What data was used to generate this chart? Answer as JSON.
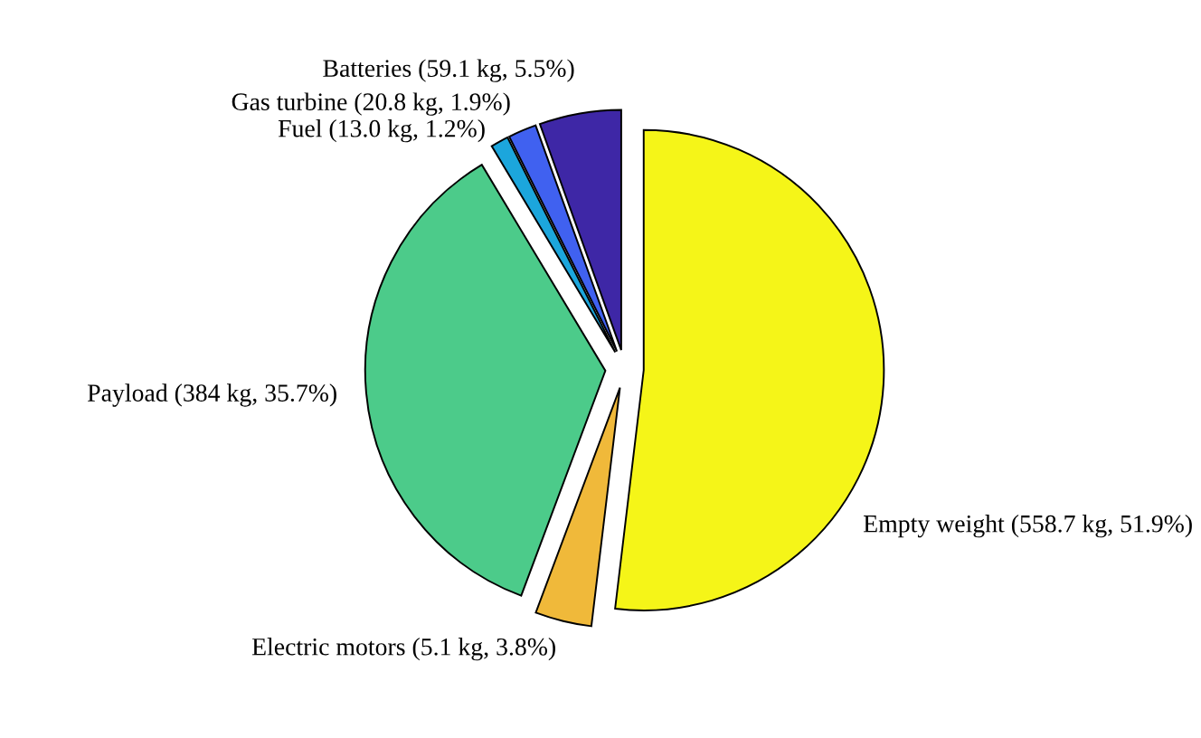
{
  "chart_data": {
    "type": "pie",
    "categories": [
      "Empty weight (558.7 kg, 51.9%)",
      "Electric motors (5.1 kg, 3.8%)",
      "Payload (384 kg, 35.7%)",
      "Fuel (13.0 kg, 1.2%)",
      "Gas turbine (20.8 kg, 1.9%)",
      "Batteries (59.1 kg, 5.5%)"
    ],
    "values": [
      51.9,
      3.8,
      35.7,
      1.2,
      1.9,
      5.5
    ],
    "colors": [
      "#f5f518",
      "#f0b93a",
      "#4ccb8a",
      "#1ca6dc",
      "#4061f0",
      "#3e27a6"
    ]
  }
}
